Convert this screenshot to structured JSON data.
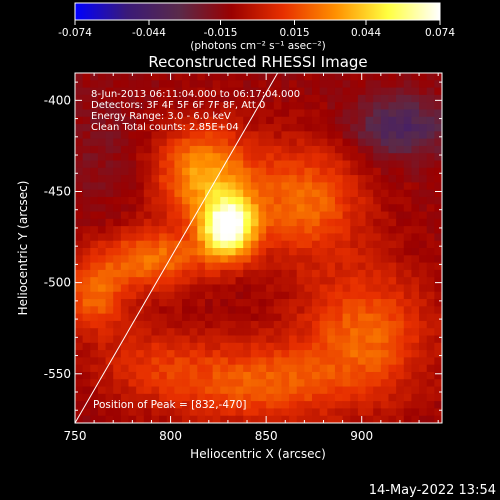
{
  "colorbar": {
    "ticks": [
      "-0.074",
      "-0.044",
      "-0.015",
      "0.015",
      "0.044",
      "0.074"
    ],
    "tick_values": [
      -0.074,
      -0.044,
      -0.015,
      0.015,
      0.044,
      0.074
    ],
    "range": [
      -0.074,
      0.074
    ],
    "unit": "(photons cm⁻² s⁻¹ asec⁻²)",
    "stops": [
      "#0000ff",
      "#3a1a78",
      "#5a2a4a",
      "#9a0000",
      "#e83000",
      "#ff9000",
      "#ffff40",
      "#ffffff"
    ]
  },
  "chart_data": {
    "type": "heatmap",
    "title": "Reconstructed RHESSI Image",
    "xlabel": "Heliocentric X (arcsec)",
    "ylabel": "Heliocentric Y (arcsec)",
    "xlim": [
      750,
      942
    ],
    "ylim": [
      -577,
      -385
    ],
    "x_ticks": [
      750,
      800,
      850,
      900
    ],
    "y_ticks": [
      -400,
      -450,
      -500,
      -550
    ],
    "annotations": [
      " 8-Jun-2013 06:11:04.000 to 06:17:04.000",
      "Detectors: 3F 4F 5F 6F 7F 8F, Att 0",
      "Energy Range: 3.0 - 6.0 keV",
      "Clean    Total counts: 2.85E+04"
    ],
    "peak_text": "Position of Peak = [832,-470]",
    "peak": [
      832,
      -470
    ],
    "limb_line": [
      [
        750,
        -577
      ],
      [
        856,
        -385
      ]
    ],
    "sources": [
      {
        "x": 830,
        "y": -470,
        "amp": 1.0,
        "sx": 10,
        "sy": 12
      },
      {
        "x": 817,
        "y": -440,
        "amp": 0.55,
        "sx": 18,
        "sy": 18
      },
      {
        "x": 790,
        "y": -487,
        "amp": 0.45,
        "sx": 20,
        "sy": 12
      },
      {
        "x": 760,
        "y": -508,
        "amp": 0.38,
        "sx": 12,
        "sy": 14
      },
      {
        "x": 870,
        "y": -455,
        "amp": 0.42,
        "sx": 22,
        "sy": 22
      },
      {
        "x": 902,
        "y": -528,
        "amp": 0.4,
        "sx": 24,
        "sy": 26
      },
      {
        "x": 845,
        "y": -555,
        "amp": 0.38,
        "sx": 30,
        "sy": 16
      },
      {
        "x": 790,
        "y": -545,
        "amp": 0.22,
        "sx": 22,
        "sy": 16
      },
      {
        "x": 920,
        "y": -415,
        "amp": -0.35,
        "sx": 18,
        "sy": 12
      },
      {
        "x": 765,
        "y": -430,
        "amp": -0.08,
        "sx": 16,
        "sy": 24
      }
    ]
  },
  "footer": {
    "timestamp": "14-May-2022 13:54"
  }
}
